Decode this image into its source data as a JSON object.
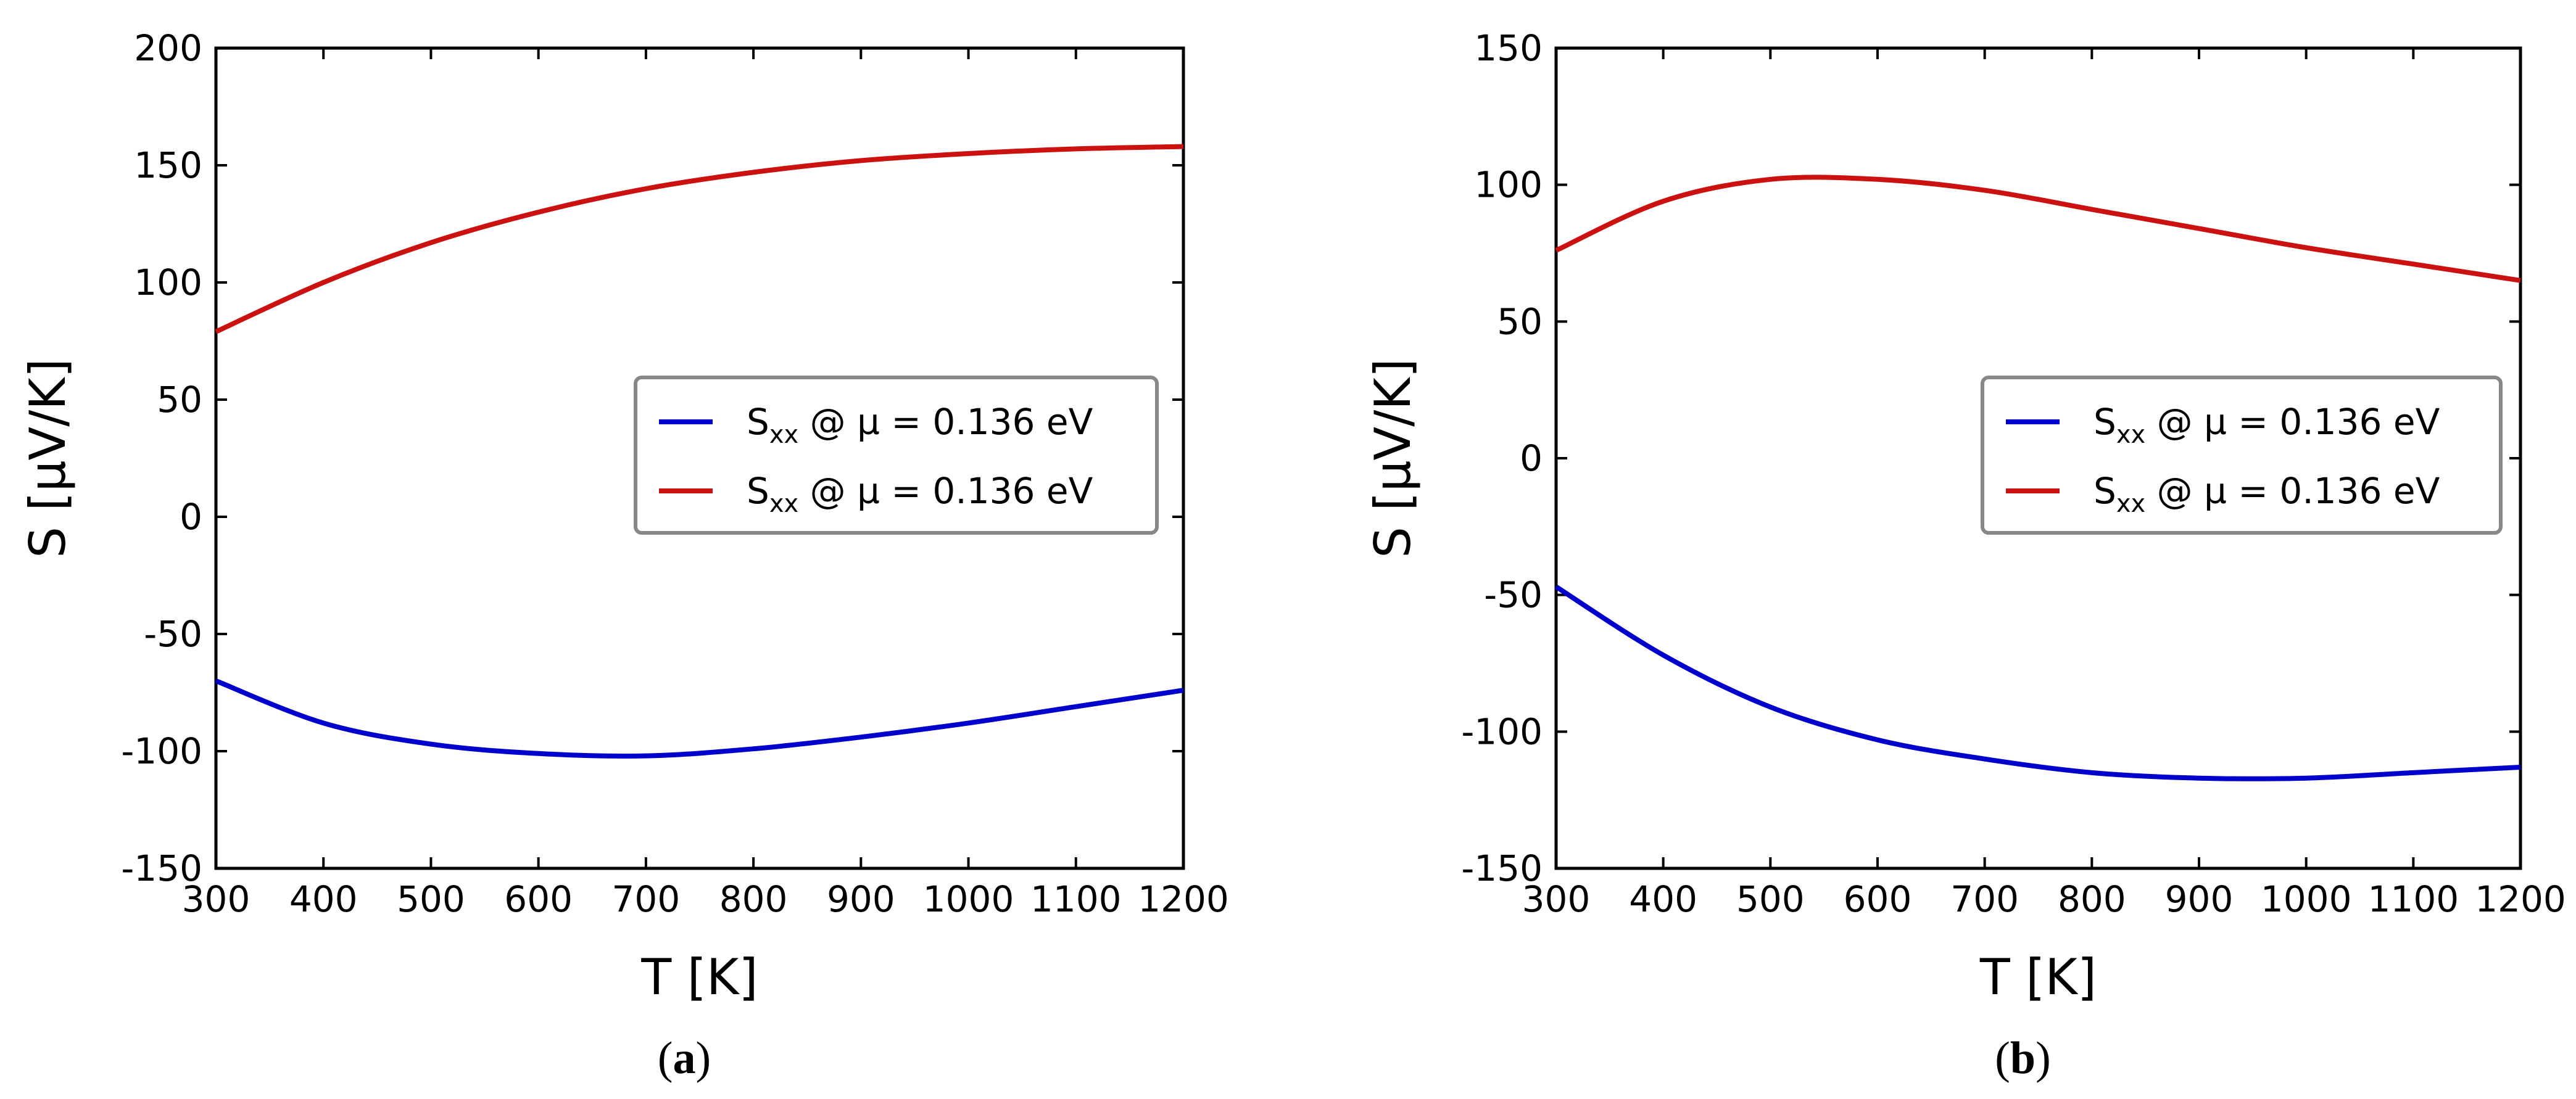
{
  "chart_data": [
    {
      "id": "a",
      "type": "line",
      "caption_letter": "a",
      "xlabel": "T [K]",
      "ylabel": "S [µV/K]",
      "xlim": [
        300,
        1200
      ],
      "ylim": [
        -150,
        200
      ],
      "xticks": [
        300,
        400,
        500,
        600,
        700,
        800,
        900,
        1000,
        1100,
        1200
      ],
      "yticks": [
        -150,
        -100,
        -50,
        0,
        50,
        100,
        150,
        200
      ],
      "x": [
        300,
        400,
        500,
        600,
        700,
        800,
        900,
        1000,
        1100,
        1200
      ],
      "series": [
        {
          "name": "S_xx @ µ = 0.136 eV",
          "legend_main": "S",
          "legend_sub": "xx",
          "legend_rest": " @ µ = 0.136 eV",
          "color": "#0000cc",
          "values": [
            -70,
            -88,
            -97,
            -101,
            -102,
            -99,
            -94,
            -88,
            -81,
            -74
          ]
        },
        {
          "name": "S_xx @ µ = 0.136 eV",
          "legend_main": "S",
          "legend_sub": "xx",
          "legend_rest": " @ µ =     0.136 eV",
          "color": "#cc1111",
          "values": [
            79,
            100,
            117,
            130,
            140,
            147,
            152,
            155,
            157,
            158
          ]
        }
      ],
      "legend_position": "center-right"
    },
    {
      "id": "b",
      "type": "line",
      "caption_letter": "b",
      "xlabel": "T [K]",
      "ylabel": "S [µV/K]",
      "xlim": [
        300,
        1200
      ],
      "ylim": [
        -150,
        150
      ],
      "xticks": [
        300,
        400,
        500,
        600,
        700,
        800,
        900,
        1000,
        1100,
        1200
      ],
      "yticks": [
        -150,
        -100,
        -50,
        0,
        50,
        100,
        150
      ],
      "x": [
        300,
        400,
        500,
        600,
        700,
        800,
        900,
        1000,
        1100,
        1200
      ],
      "series": [
        {
          "name": "S_xx @ µ = 0.136 eV",
          "legend_main": "S",
          "legend_sub": "xx",
          "legend_rest": " @ µ = 0.136 eV",
          "color": "#0000cc",
          "values": [
            -47,
            -72,
            -91,
            -103,
            -110,
            -115,
            -117,
            -117,
            -115,
            -113
          ]
        },
        {
          "name": "S_xx @ µ = 0.136 eV",
          "legend_main": "S",
          "legend_sub": "xx",
          "legend_rest": " @ µ =     0.136 eV",
          "color": "#cc1111",
          "values": [
            76,
            94,
            102,
            102,
            98,
            91,
            84,
            77,
            71,
            65
          ]
        }
      ],
      "legend_position": "center-right"
    }
  ]
}
